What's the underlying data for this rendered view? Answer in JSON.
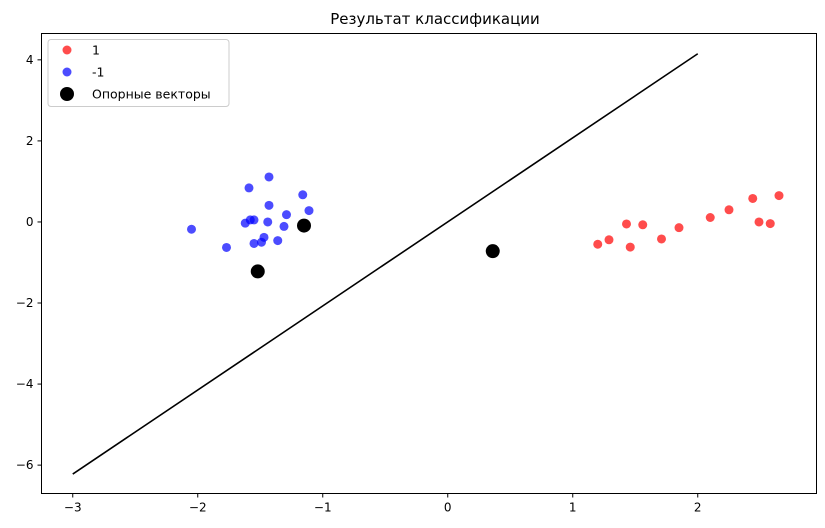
{
  "chart_data": {
    "type": "scatter",
    "title": "Результат классификации",
    "xlabel": "",
    "ylabel": "",
    "xlim": [
      -3.25,
      2.95
    ],
    "ylim": [
      -6.7,
      4.65
    ],
    "xticks": [
      -3,
      -2,
      -1,
      0,
      1,
      2
    ],
    "yticks": [
      -6,
      -4,
      -2,
      0,
      2,
      4
    ],
    "grid": false,
    "legend_position": "upper-left",
    "series": [
      {
        "name": "1",
        "color": "#ff0000",
        "alpha": 0.7,
        "points": [
          [
            1.2,
            -0.55
          ],
          [
            1.29,
            -0.44
          ],
          [
            1.43,
            -0.05
          ],
          [
            1.46,
            -0.62
          ],
          [
            1.56,
            -0.07
          ],
          [
            1.71,
            -0.42
          ],
          [
            1.85,
            -0.14
          ],
          [
            2.1,
            0.11
          ],
          [
            2.25,
            0.3
          ],
          [
            2.44,
            0.58
          ],
          [
            2.49,
            0.0
          ],
          [
            2.58,
            -0.04
          ],
          [
            2.65,
            0.65
          ]
        ]
      },
      {
        "name": "-1",
        "color": "#0000ff",
        "alpha": 0.7,
        "points": [
          [
            -2.05,
            -0.18
          ],
          [
            -1.77,
            -0.63
          ],
          [
            -1.62,
            -0.03
          ],
          [
            -1.58,
            0.05
          ],
          [
            -1.59,
            0.84
          ],
          [
            -1.55,
            0.05
          ],
          [
            -1.55,
            -0.53
          ],
          [
            -1.49,
            -0.5
          ],
          [
            -1.47,
            -0.38
          ],
          [
            -1.44,
            0.0
          ],
          [
            -1.43,
            0.41
          ],
          [
            -1.43,
            1.11
          ],
          [
            -1.36,
            -0.46
          ],
          [
            -1.31,
            -0.11
          ],
          [
            -1.29,
            0.18
          ],
          [
            -1.16,
            0.67
          ],
          [
            -1.11,
            0.28
          ]
        ]
      },
      {
        "name": "Опорные векторы",
        "color": "#000000",
        "alpha": 1,
        "points": [
          [
            -1.52,
            -1.22
          ],
          [
            -1.15,
            -0.09
          ],
          [
            0.36,
            -0.72
          ]
        ]
      }
    ],
    "lines": [
      {
        "color": "#000000",
        "points": [
          [
            -3.0,
            -6.22
          ],
          [
            2.0,
            4.15
          ]
        ]
      }
    ]
  }
}
